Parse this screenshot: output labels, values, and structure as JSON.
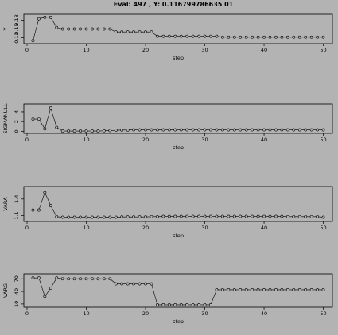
{
  "title": "Eval:  497 , Y:  0.116799786635 01",
  "chart_data": [
    {
      "type": "line",
      "ylabel": "Y",
      "xlabel": "step",
      "xlim": [
        0,
        51
      ],
      "xticks": [
        0,
        10,
        20,
        30,
        40,
        50
      ],
      "ylim": [
        0.105,
        0.195
      ],
      "yticks": [
        0.12,
        0.15,
        0.18
      ],
      "ytick_labels": [
        "0.12",
        "0.15",
        "0.18"
      ],
      "x": [
        1,
        2,
        3,
        4,
        5,
        6,
        7,
        8,
        9,
        10,
        11,
        12,
        13,
        14,
        15,
        16,
        17,
        18,
        19,
        20,
        21,
        22,
        23,
        24,
        25,
        26,
        27,
        28,
        29,
        30,
        31,
        32,
        33,
        34,
        35,
        36,
        37,
        38,
        39,
        40,
        41,
        42,
        43,
        44,
        45,
        46,
        47,
        48,
        49,
        50
      ],
      "y": [
        0.11,
        0.185,
        0.19,
        0.19,
        0.155,
        0.15,
        0.15,
        0.15,
        0.15,
        0.15,
        0.15,
        0.15,
        0.15,
        0.15,
        0.14,
        0.14,
        0.14,
        0.14,
        0.14,
        0.14,
        0.14,
        0.125,
        0.125,
        0.125,
        0.125,
        0.125,
        0.125,
        0.125,
        0.125,
        0.125,
        0.125,
        0.125,
        0.122,
        0.122,
        0.122,
        0.122,
        0.122,
        0.122,
        0.122,
        0.122,
        0.122,
        0.122,
        0.122,
        0.122,
        0.122,
        0.122,
        0.122,
        0.122,
        0.122,
        0.122
      ]
    },
    {
      "type": "line",
      "ylabel": "SIGMANULL",
      "xlabel": "step",
      "xlim": [
        0,
        51
      ],
      "xticks": [
        0,
        10,
        20,
        30,
        40,
        50
      ],
      "ylim": [
        -0.1,
        5.3
      ],
      "yticks": [
        0,
        2,
        4
      ],
      "ytick_labels": [
        "0",
        "2",
        "4"
      ],
      "x": [
        1,
        2,
        3,
        4,
        5,
        6,
        7,
        8,
        9,
        10,
        11,
        12,
        13,
        14,
        15,
        16,
        17,
        18,
        19,
        20,
        21,
        22,
        23,
        24,
        25,
        26,
        27,
        28,
        29,
        30,
        31,
        32,
        33,
        34,
        35,
        36,
        37,
        38,
        39,
        40,
        41,
        42,
        43,
        44,
        45,
        46,
        47,
        48,
        49,
        50
      ],
      "y": [
        2.5,
        2.5,
        0.5,
        4.8,
        0.8,
        0.05,
        0.05,
        0.05,
        0.05,
        0.05,
        0.05,
        0.05,
        0.1,
        0.15,
        0.2,
        0.25,
        0.25,
        0.3,
        0.3,
        0.3,
        0.3,
        0.3,
        0.3,
        0.3,
        0.3,
        0.3,
        0.3,
        0.3,
        0.3,
        0.3,
        0.3,
        0.3,
        0.3,
        0.3,
        0.3,
        0.3,
        0.3,
        0.3,
        0.3,
        0.3,
        0.3,
        0.3,
        0.3,
        0.3,
        0.3,
        0.3,
        0.3,
        0.3,
        0.3,
        0.3
      ]
    },
    {
      "type": "line",
      "ylabel": "VARA",
      "xlabel": "step",
      "xlim": [
        0,
        51
      ],
      "xticks": [
        0,
        10,
        20,
        30,
        40,
        50
      ],
      "ylim": [
        1.02,
        1.6
      ],
      "yticks": [
        1.1,
        1.4
      ],
      "ytick_labels": [
        "1.1",
        "1.4"
      ],
      "x": [
        1,
        2,
        3,
        4,
        5,
        6,
        7,
        8,
        9,
        10,
        11,
        12,
        13,
        14,
        15,
        16,
        17,
        18,
        19,
        20,
        21,
        22,
        23,
        24,
        25,
        26,
        27,
        28,
        29,
        30,
        31,
        32,
        33,
        34,
        35,
        36,
        37,
        38,
        39,
        40,
        41,
        42,
        43,
        44,
        45,
        46,
        47,
        48,
        49,
        50
      ],
      "y": [
        1.2,
        1.2,
        1.52,
        1.28,
        1.08,
        1.07,
        1.07,
        1.07,
        1.07,
        1.07,
        1.07,
        1.07,
        1.07,
        1.07,
        1.07,
        1.075,
        1.075,
        1.075,
        1.075,
        1.075,
        1.08,
        1.08,
        1.085,
        1.085,
        1.085,
        1.085,
        1.085,
        1.085,
        1.085,
        1.085,
        1.085,
        1.085,
        1.085,
        1.085,
        1.085,
        1.085,
        1.085,
        1.085,
        1.085,
        1.085,
        1.085,
        1.085,
        1.085,
        1.08,
        1.08,
        1.08,
        1.08,
        1.08,
        1.08,
        1.07
      ]
    },
    {
      "type": "line",
      "ylabel": "VARG",
      "xlabel": "step",
      "xlim": [
        0,
        51
      ],
      "xticks": [
        0,
        10,
        20,
        30,
        40,
        50
      ],
      "ylim": [
        6,
        78
      ],
      "yticks": [
        10,
        40,
        70
      ],
      "ytick_labels": [
        "10",
        "40",
        "70"
      ],
      "x": [
        1,
        2,
        3,
        4,
        5,
        6,
        7,
        8,
        9,
        10,
        11,
        12,
        13,
        14,
        15,
        16,
        17,
        18,
        19,
        20,
        21,
        22,
        23,
        24,
        25,
        26,
        27,
        28,
        29,
        30,
        31,
        32,
        33,
        34,
        35,
        36,
        37,
        38,
        39,
        40,
        41,
        42,
        43,
        44,
        45,
        46,
        47,
        48,
        49,
        50
      ],
      "y": [
        72,
        72,
        28,
        48,
        72,
        70,
        70,
        70,
        70,
        70,
        70,
        70,
        70,
        70,
        58,
        58,
        58,
        58,
        58,
        58,
        58,
        8,
        8,
        8,
        8,
        8,
        8,
        8,
        8,
        8,
        8,
        44,
        44,
        44,
        44,
        44,
        44,
        44,
        44,
        44,
        44,
        44,
        44,
        44,
        44,
        44,
        44,
        44,
        44,
        44
      ]
    }
  ]
}
